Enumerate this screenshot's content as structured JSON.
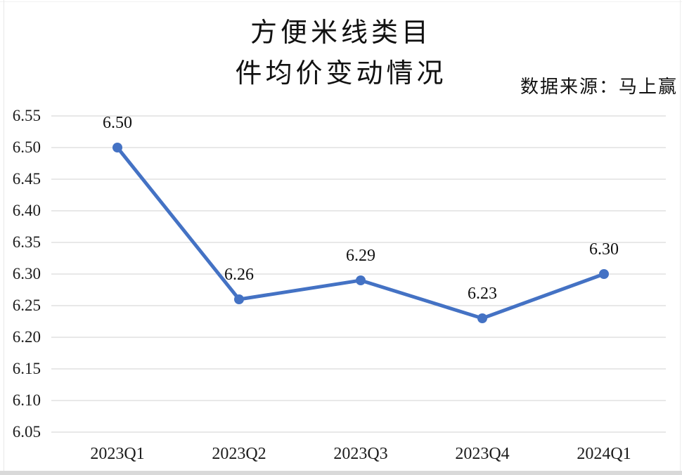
{
  "window": {
    "background": "#ffffff",
    "bottom_bar_color": "#d9d9d9",
    "edge_color": "#e7e7e7"
  },
  "chart_data": {
    "type": "line",
    "title_lines": [
      "方便米线类目",
      "件均价变动情况"
    ],
    "source_note": "数据来源：马上赢",
    "categories": [
      "2023Q1",
      "2023Q2",
      "2023Q3",
      "2023Q4",
      "2024Q1"
    ],
    "series": [
      {
        "name": "件均价",
        "values": [
          6.5,
          6.26,
          6.29,
          6.23,
          6.3
        ],
        "point_labels": [
          "6.50",
          "6.26",
          "6.29",
          "6.23",
          "6.30"
        ]
      }
    ],
    "xlabel": "",
    "ylabel": "",
    "ylim": [
      6.05,
      6.55
    ],
    "ytick_step": 0.05,
    "ytick_labels": [
      "6.55",
      "6.50",
      "6.45",
      "6.40",
      "6.35",
      "6.30",
      "6.25",
      "6.20",
      "6.15",
      "6.10",
      "6.05"
    ],
    "grid": true,
    "legend_position": "none",
    "colors": {
      "line": "#4472C4",
      "marker": "#4472C4",
      "gridline": "#D9D9D9",
      "text": "#1c1c1c"
    }
  }
}
